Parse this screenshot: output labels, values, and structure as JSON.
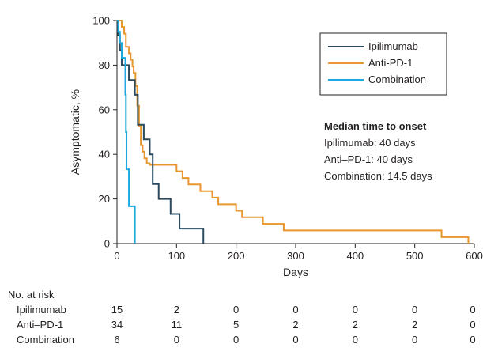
{
  "chart_data": {
    "type": "line",
    "step": true,
    "xlabel": "Days",
    "ylabel": "Asymptomatic, %",
    "xlim": [
      0,
      600
    ],
    "ylim": [
      0,
      100
    ],
    "xticks": [
      0,
      100,
      200,
      300,
      400,
      500,
      600
    ],
    "yticks": [
      0,
      20,
      40,
      60,
      80,
      100
    ],
    "x_tick_labels": [
      "0",
      "100",
      "200",
      "300",
      "400",
      "500",
      "600"
    ],
    "y_tick_labels": [
      "0",
      "20",
      "40",
      "60",
      "80",
      "100"
    ],
    "grid": false,
    "legend_position": "top-right",
    "series": [
      {
        "name": "Ipilimumab",
        "color": "#2b4a5e",
        "x": [
          0,
          2,
          5,
          8,
          12,
          17,
          20,
          25,
          30,
          35,
          40,
          45,
          55,
          60,
          70,
          90,
          105,
          145
        ],
        "y": [
          100,
          93.3,
          86.7,
          80,
          80,
          80,
          73.3,
          73.3,
          66.7,
          53.3,
          53.3,
          46.7,
          40,
          26.7,
          20,
          13.3,
          6.7,
          0
        ]
      },
      {
        "name": "Anti-PD-1",
        "color": "#e8962e",
        "x": [
          0,
          8,
          12,
          15,
          20,
          23,
          26,
          28,
          31,
          34,
          37,
          40,
          43,
          46,
          50,
          55,
          60,
          100,
          110,
          120,
          140,
          160,
          170,
          180,
          200,
          210,
          245,
          280,
          545,
          590
        ],
        "y": [
          100,
          97.1,
          94.1,
          88.2,
          85.3,
          82.4,
          79.4,
          76.5,
          70.6,
          61.8,
          52.9,
          44.1,
          41.2,
          38.2,
          36,
          35.3,
          35.3,
          32.4,
          29.4,
          26.5,
          23.5,
          20.6,
          17.6,
          17.6,
          14.7,
          11.8,
          8.8,
          5.9,
          2.9,
          0
        ]
      },
      {
        "name": "Combination",
        "color": "#1ba9e0",
        "x": [
          0,
          2,
          5,
          8,
          12,
          14,
          15,
          16,
          20,
          30
        ],
        "y": [
          100,
          95,
          90,
          83.3,
          83.3,
          66.7,
          50,
          33.3,
          16.7,
          0
        ]
      }
    ],
    "annotation": {
      "title": "Median time to onset",
      "lines": [
        "Ipilimumab: 40 days",
        "Anti–PD-1: 40 days",
        "Combination: 14.5 days"
      ]
    },
    "at_risk": {
      "header": "No. at risk",
      "rows": [
        {
          "label": "Ipilimumab",
          "values": [
            "15",
            "2",
            "0",
            "0",
            "0",
            "0",
            "0"
          ]
        },
        {
          "label": "Anti–PD-1",
          "values": [
            "34",
            "11",
            "5",
            "2",
            "2",
            "2",
            "0"
          ]
        },
        {
          "label": "Combination",
          "values": [
            "6",
            "0",
            "0",
            "0",
            "0",
            "0",
            "0"
          ]
        }
      ]
    }
  }
}
